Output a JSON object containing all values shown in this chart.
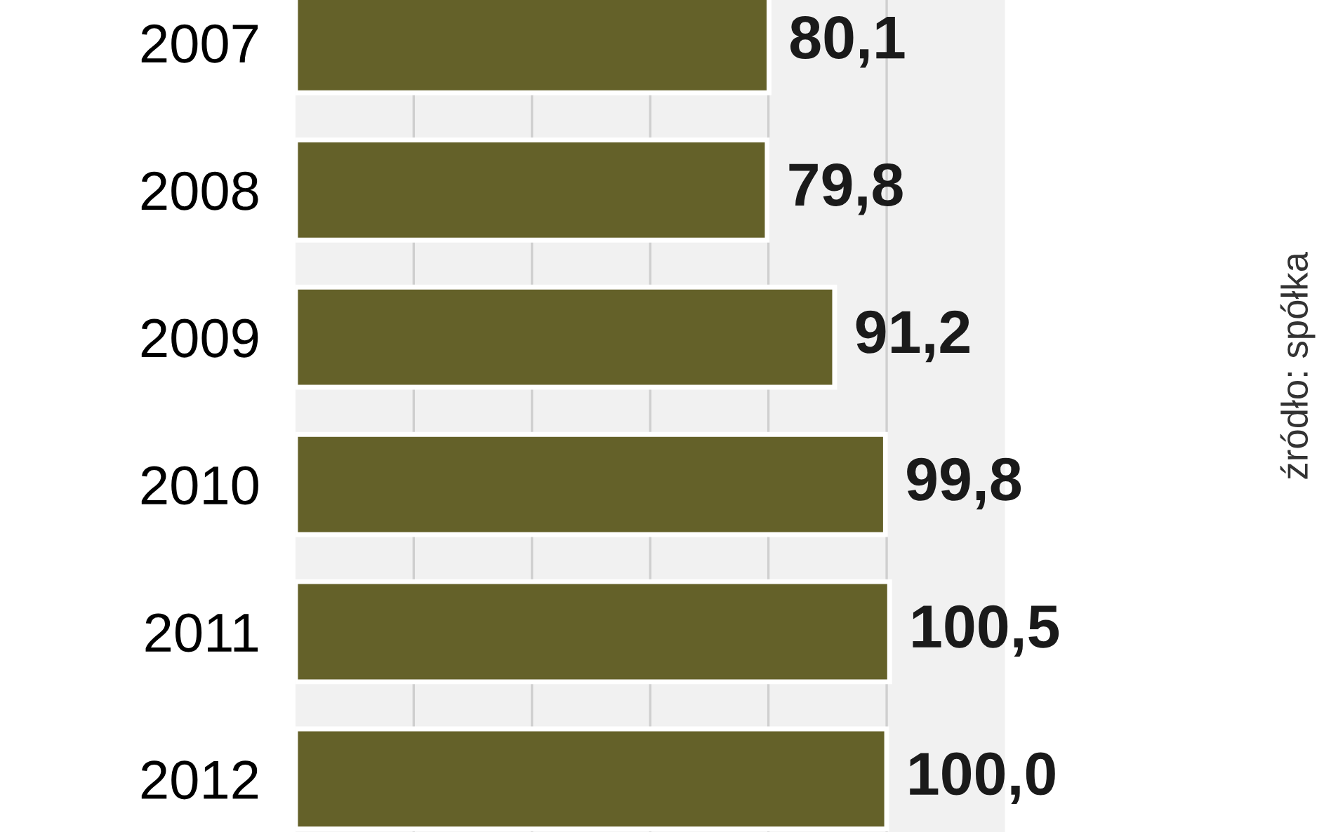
{
  "chart_data": {
    "type": "bar",
    "orientation": "horizontal",
    "categories": [
      "2007",
      "2008",
      "2009",
      "2010",
      "2011",
      "2012"
    ],
    "values": [
      80.1,
      79.8,
      91.2,
      99.8,
      100.5,
      100.0
    ],
    "value_labels": [
      "80,1",
      "79,8",
      "91,2",
      "99,8",
      "100,5",
      "100,0"
    ],
    "color": "#646129",
    "xlim": [
      0,
      120
    ],
    "xticks": [
      {
        "value": 20,
        "label": null
      },
      {
        "value": 40,
        "label": null
      },
      {
        "value": 60,
        "label": null
      },
      {
        "value": 80,
        "label": null
      },
      {
        "value": 100,
        "label": null
      }
    ],
    "grid": "x",
    "tick_labels": "y",
    "annotations": [
      "źródło: spółka"
    ]
  }
}
